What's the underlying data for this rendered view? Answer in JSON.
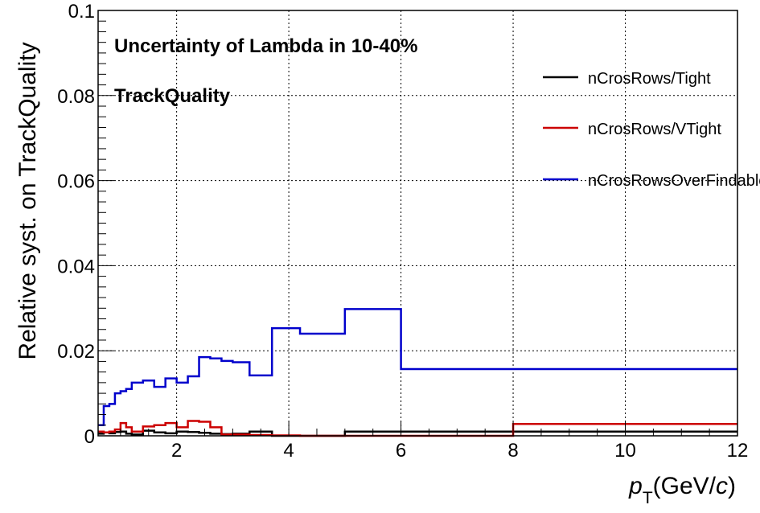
{
  "chart_data": {
    "type": "line",
    "title_lines": [
      "Uncertainty of Lambda in 10-40%",
      "TrackQuality"
    ],
    "xlabel": {
      "main": "p",
      "sub": "T",
      "rest_prefix": "(GeV/",
      "rest_italic": "c",
      "rest_suffix": ")"
    },
    "ylabel": "Relative syst. on TrackQuality",
    "xlim": [
      0.6,
      12
    ],
    "ylim": [
      0,
      0.1
    ],
    "xticks": [
      2,
      4,
      6,
      8,
      10,
      12
    ],
    "xtick_labels": [
      "2",
      "4",
      "6",
      "8",
      "10",
      "12"
    ],
    "yticks": [
      0,
      0.02,
      0.04,
      0.06,
      0.08,
      0.1
    ],
    "ytick_labels": [
      "0",
      "0.02",
      "0.04",
      "0.06",
      "0.08",
      "0.1"
    ],
    "grid": true,
    "legend_position": "top-right",
    "bin_edges": [
      0.6,
      0.7,
      0.8,
      0.9,
      1.0,
      1.1,
      1.2,
      1.4,
      1.6,
      1.8,
      2.0,
      2.2,
      2.4,
      2.6,
      2.8,
      3.0,
      3.3,
      3.7,
      4.2,
      5.0,
      6.0,
      8.0,
      12.0
    ],
    "series": [
      {
        "name": "nCrosRows/Tight",
        "color": "#000000",
        "values": [
          0.0005,
          0.0008,
          0.0006,
          0.0009,
          0.001,
          0.0005,
          0.0003,
          0.0012,
          0.0008,
          0.0006,
          0.001,
          0.0009,
          0.0007,
          0.0005,
          0.0004,
          0.0005,
          0.001,
          0.0,
          0.0,
          0.001,
          0.001,
          0.001
        ]
      },
      {
        "name": "nCrosRows/VTight",
        "color": "#cc0000",
        "values": [
          0.001,
          0.0008,
          0.001,
          0.0015,
          0.003,
          0.002,
          0.001,
          0.0022,
          0.0025,
          0.003,
          0.002,
          0.0035,
          0.0033,
          0.002,
          0.0003,
          0.0003,
          0.0002,
          0.0001,
          0.0,
          0.0,
          0.0,
          0.0028
        ]
      },
      {
        "name": "nCrosRowsOverFindable",
        "color": "#0000cc",
        "values": [
          0.0025,
          0.007,
          0.0075,
          0.01,
          0.0105,
          0.011,
          0.0125,
          0.013,
          0.0115,
          0.0135,
          0.0125,
          0.014,
          0.0185,
          0.0182,
          0.0176,
          0.0173,
          0.0142,
          0.0253,
          0.024,
          0.0298,
          0.0157,
          0.0157
        ]
      }
    ]
  }
}
